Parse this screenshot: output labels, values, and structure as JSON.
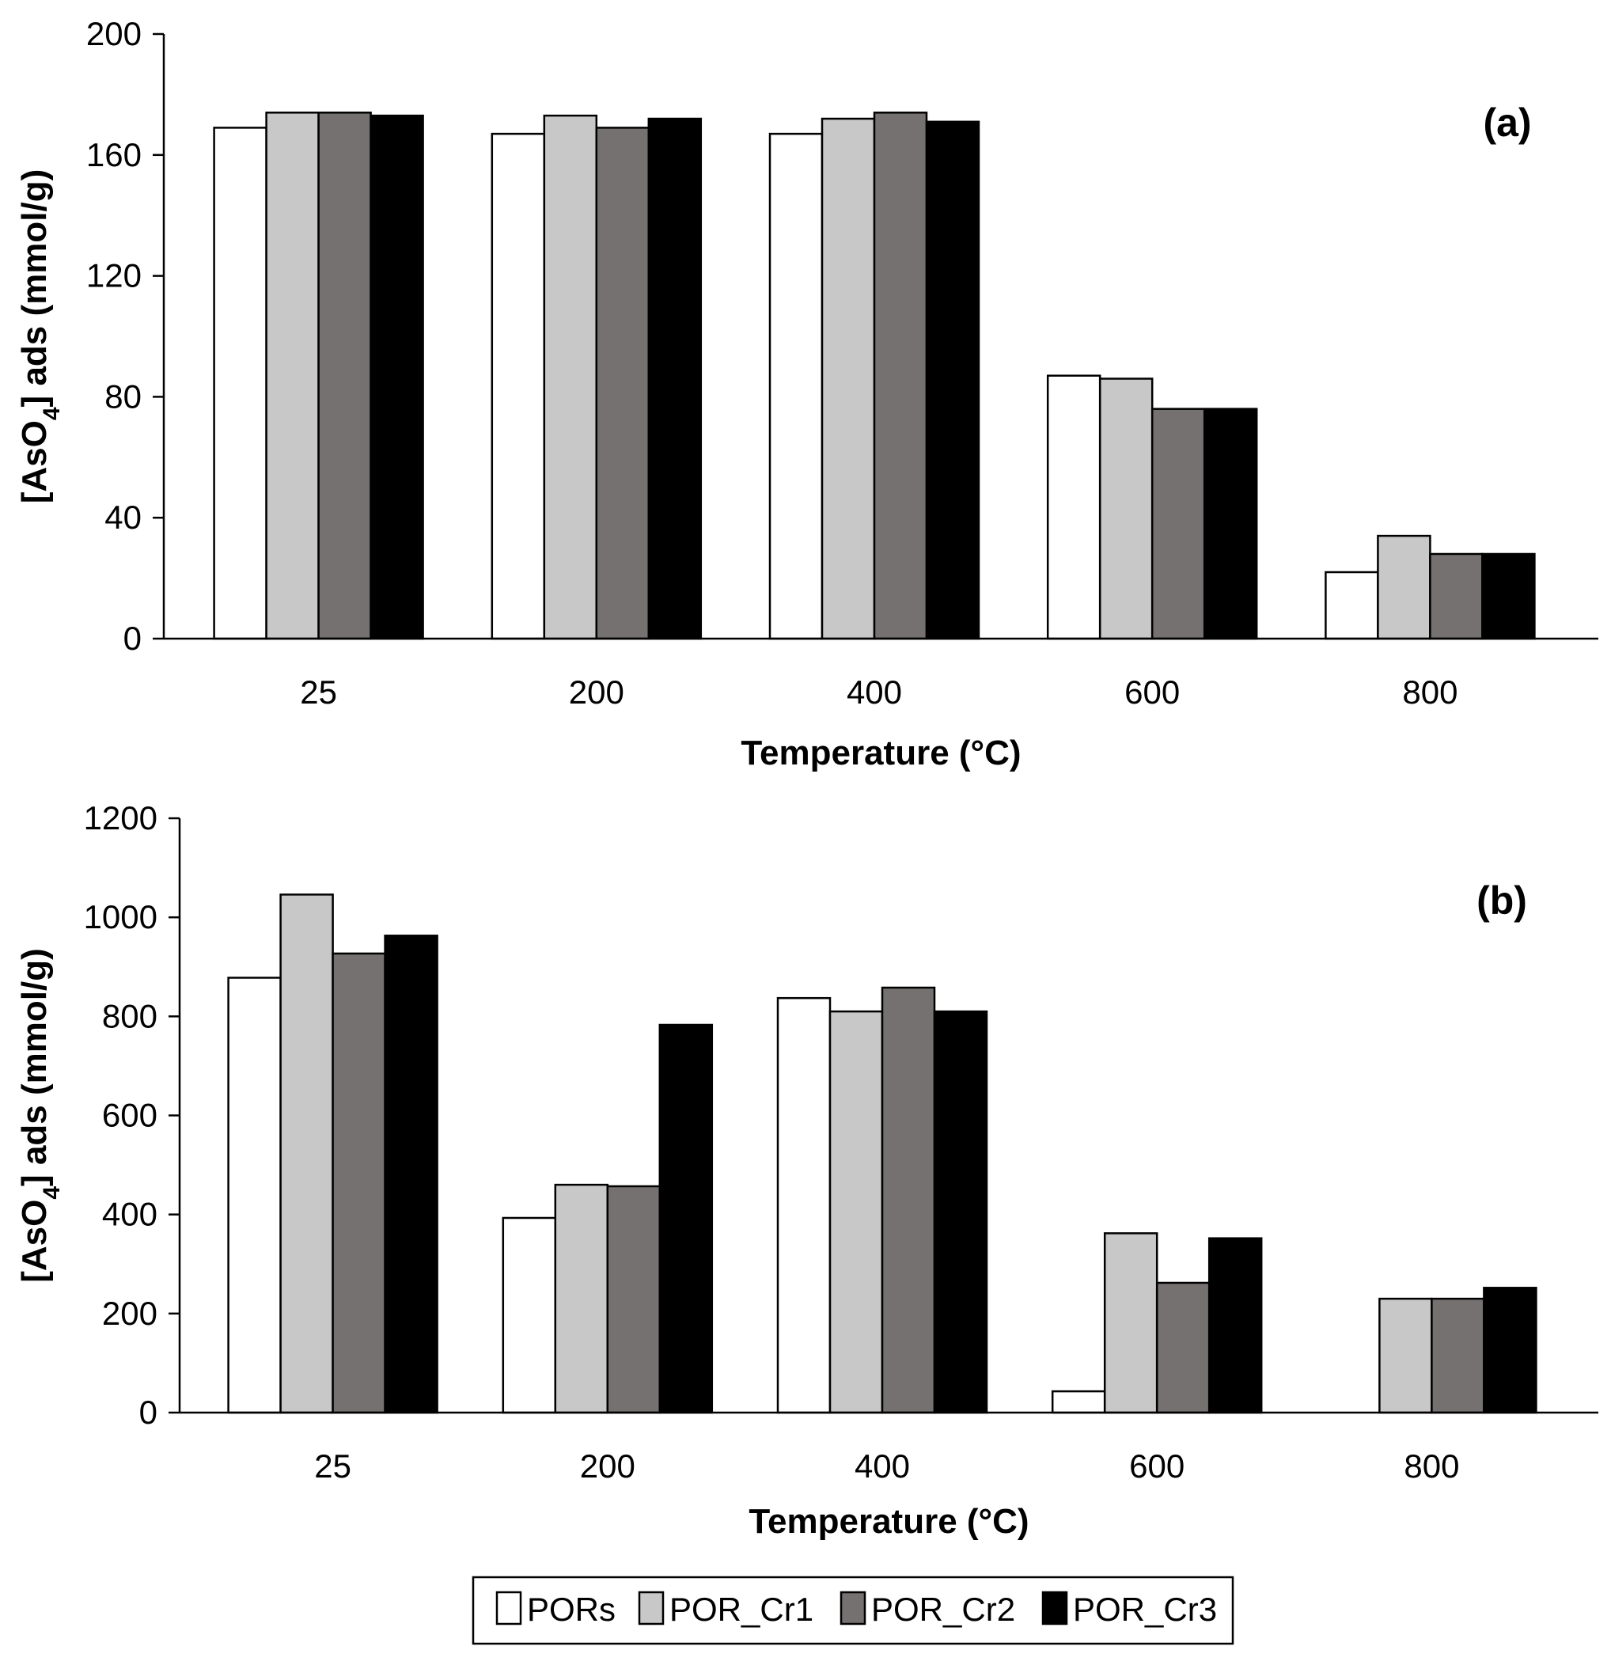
{
  "colors": {
    "PORs": "#ffffff",
    "POR_Cr1": "#c8c8c8",
    "POR_Cr2": "#767171",
    "POR_Cr3": "#000000",
    "axis": "#000000"
  },
  "legend": {
    "items": [
      {
        "label": "PORs",
        "color": "#ffffff"
      },
      {
        "label": "POR_Cr1",
        "color": "#c8c8c8"
      },
      {
        "label": "POR_Cr2",
        "color": "#767171"
      },
      {
        "label": "POR_Cr3",
        "color": "#000000"
      }
    ]
  },
  "chart_data": [
    {
      "type": "bar",
      "panel_label": "(a)",
      "title": "",
      "xlabel": "Temperature (°C)",
      "ylabel": {
        "pre": "[AsO",
        "sub": "4",
        "post": "] ads (mmol/g)"
      },
      "categories": [
        "25",
        "200",
        "400",
        "600",
        "800"
      ],
      "ylim": [
        0,
        200
      ],
      "yticks": [
        0,
        40,
        80,
        120,
        160,
        200
      ],
      "grid": false,
      "series": [
        {
          "name": "PORs",
          "values": [
            169,
            167,
            167,
            87,
            22
          ]
        },
        {
          "name": "POR_Cr1",
          "values": [
            174,
            173,
            172,
            86,
            34
          ]
        },
        {
          "name": "POR_Cr2",
          "values": [
            174,
            169,
            174,
            76,
            28
          ]
        },
        {
          "name": "POR_Cr3",
          "values": [
            173,
            172,
            171,
            76,
            28
          ]
        }
      ]
    },
    {
      "type": "bar",
      "panel_label": "(b)",
      "title": "",
      "xlabel": "Temperature (°C)",
      "ylabel": {
        "pre": "[AsO",
        "sub": "4",
        "post": "] ads (mmol/g)"
      },
      "categories": [
        "25",
        "200",
        "400",
        "600",
        "800"
      ],
      "ylim": [
        0,
        1200
      ],
      "yticks": [
        0,
        200,
        400,
        600,
        800,
        1000,
        1200
      ],
      "grid": false,
      "series": [
        {
          "name": "PORs",
          "values": [
            878,
            393,
            837,
            43,
            0
          ]
        },
        {
          "name": "POR_Cr1",
          "values": [
            1046,
            460,
            810,
            362,
            230
          ]
        },
        {
          "name": "POR_Cr2",
          "values": [
            927,
            457,
            858,
            262,
            230
          ]
        },
        {
          "name": "POR_Cr3",
          "values": [
            963,
            783,
            810,
            352,
            252
          ]
        }
      ]
    }
  ]
}
